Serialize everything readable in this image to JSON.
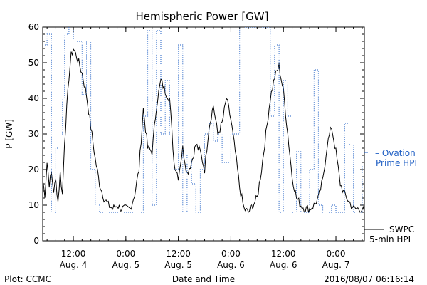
{
  "chart_data": {
    "type": "line",
    "title": "Hemispheric Power [GW]",
    "xlabel": "Date and Time",
    "ylabel": "P [GW]",
    "ylim": [
      0,
      60
    ],
    "y_ticks": [
      0,
      10,
      20,
      30,
      40,
      50,
      60
    ],
    "x_range_hours": [
      "2016-08-04 05:00",
      "2016-08-07 06:30"
    ],
    "x_ticks": [
      {
        "t": "2016-08-04 12:00",
        "line1": "12:00",
        "line2": "Aug. 4"
      },
      {
        "t": "2016-08-05 00:00",
        "line1": "0:00",
        "line2": "Aug. 5"
      },
      {
        "t": "2016-08-05 12:00",
        "line1": "12:00",
        "line2": "Aug. 5"
      },
      {
        "t": "2016-08-06 00:00",
        "line1": "0:00",
        "line2": "Aug. 6"
      },
      {
        "t": "2016-08-06 12:00",
        "line1": "12:00",
        "line2": "Aug. 6"
      },
      {
        "t": "2016-08-07 00:00",
        "line1": "0:00",
        "line2": "Aug. 7"
      }
    ],
    "series": [
      {
        "name": "SWPC 5-min HPI",
        "color": "#000000",
        "style": "solid",
        "x": [
          "2016-08-04 05:00",
          "2016-08-04 05:30",
          "2016-08-04 06:00",
          "2016-08-04 06:30",
          "2016-08-04 07:00",
          "2016-08-04 07:30",
          "2016-08-04 08:00",
          "2016-08-04 08:30",
          "2016-08-04 09:00",
          "2016-08-04 09:30",
          "2016-08-04 10:00",
          "2016-08-04 10:30",
          "2016-08-04 11:00",
          "2016-08-04 11:30",
          "2016-08-04 12:00",
          "2016-08-04 13:00",
          "2016-08-04 14:00",
          "2016-08-04 15:00",
          "2016-08-04 16:00",
          "2016-08-04 17:00",
          "2016-08-04 18:00",
          "2016-08-04 19:00",
          "2016-08-04 20:00",
          "2016-08-04 21:00",
          "2016-08-04 22:00",
          "2016-08-04 23:00",
          "2016-08-05 00:00",
          "2016-08-05 01:00",
          "2016-08-05 02:00",
          "2016-08-05 03:00",
          "2016-08-05 04:00",
          "2016-08-05 05:00",
          "2016-08-05 06:00",
          "2016-08-05 07:00",
          "2016-08-05 08:00",
          "2016-08-05 09:00",
          "2016-08-05 10:00",
          "2016-08-05 11:00",
          "2016-08-05 12:00",
          "2016-08-05 13:00",
          "2016-08-05 14:00",
          "2016-08-05 15:00",
          "2016-08-05 16:00",
          "2016-08-05 17:00",
          "2016-08-05 18:00",
          "2016-08-05 19:00",
          "2016-08-05 20:00",
          "2016-08-05 21:00",
          "2016-08-05 22:00",
          "2016-08-05 23:00",
          "2016-08-06 00:00",
          "2016-08-06 01:00",
          "2016-08-06 02:00",
          "2016-08-06 03:00",
          "2016-08-06 04:00",
          "2016-08-06 05:00",
          "2016-08-06 06:00",
          "2016-08-06 07:00",
          "2016-08-06 08:00",
          "2016-08-06 09:00",
          "2016-08-06 10:00",
          "2016-08-06 11:00",
          "2016-08-06 12:00",
          "2016-08-06 13:00",
          "2016-08-06 14:00",
          "2016-08-06 15:00",
          "2016-08-06 16:00",
          "2016-08-06 17:00",
          "2016-08-06 18:00",
          "2016-08-06 19:00",
          "2016-08-06 20:00",
          "2016-08-06 21:00",
          "2016-08-06 22:00",
          "2016-08-06 23:00",
          "2016-08-07 00:00",
          "2016-08-07 01:00",
          "2016-08-07 02:00",
          "2016-08-07 03:00",
          "2016-08-07 04:00",
          "2016-08-07 05:00",
          "2016-08-07 06:00",
          "2016-08-07 06:30"
        ],
        "y": [
          17,
          13,
          22,
          16,
          19,
          14,
          17,
          11,
          19,
          13,
          28,
          37,
          46,
          52,
          54,
          51,
          47,
          41,
          32,
          23,
          16,
          12,
          10,
          9,
          10,
          9,
          9,
          9,
          13,
          20,
          37,
          26,
          25,
          38,
          45,
          42,
          40,
          22,
          18,
          26,
          19,
          22,
          27,
          25,
          20,
          32,
          38,
          30,
          33,
          40,
          34,
          25,
          15,
          9,
          8,
          10,
          12,
          20,
          30,
          40,
          46,
          49,
          42,
          30,
          18,
          12,
          10,
          9,
          9,
          10,
          12,
          17,
          27,
          32,
          25,
          16,
          13,
          11,
          9,
          9,
          9,
          8
        ],
        "dense_noise": true
      },
      {
        "name": "Ovation Prime HPI",
        "color": "#1f5fc4",
        "style": "dotted-steps",
        "x": [
          "2016-08-04 05:00",
          "2016-08-04 06:00",
          "2016-08-04 07:00",
          "2016-08-04 08:00",
          "2016-08-04 08:30",
          "2016-08-04 09:30",
          "2016-08-04 10:00",
          "2016-08-04 11:00",
          "2016-08-04 12:00",
          "2016-08-04 14:00",
          "2016-08-04 15:00",
          "2016-08-04 16:00",
          "2016-08-04 17:00",
          "2016-08-04 18:00",
          "2016-08-04 19:00",
          "2016-08-05 00:00",
          "2016-08-05 04:00",
          "2016-08-05 05:00",
          "2016-08-05 06:00",
          "2016-08-05 07:00",
          "2016-08-05 08:00",
          "2016-08-05 09:00",
          "2016-08-05 10:00",
          "2016-08-05 11:00",
          "2016-08-05 12:00",
          "2016-08-05 13:00",
          "2016-08-05 14:00",
          "2016-08-05 15:00",
          "2016-08-05 16:00",
          "2016-08-05 17:00",
          "2016-08-05 18:00",
          "2016-08-05 19:00",
          "2016-08-05 20:00",
          "2016-08-05 21:00",
          "2016-08-05 22:00",
          "2016-08-06 00:00",
          "2016-08-06 01:00",
          "2016-08-06 02:00",
          "2016-08-06 07:00",
          "2016-08-06 09:00",
          "2016-08-06 10:00",
          "2016-08-06 11:00",
          "2016-08-06 12:00",
          "2016-08-06 13:00",
          "2016-08-06 14:00",
          "2016-08-06 15:00",
          "2016-08-06 16:00",
          "2016-08-06 17:00",
          "2016-08-06 18:00",
          "2016-08-06 19:00",
          "2016-08-06 20:00",
          "2016-08-06 21:00",
          "2016-08-06 22:00",
          "2016-08-06 23:00",
          "2016-08-07 00:00",
          "2016-08-07 01:00",
          "2016-08-07 02:00",
          "2016-08-07 03:00",
          "2016-08-07 04:00",
          "2016-08-07 05:00",
          "2016-08-07 06:00",
          "2016-08-07 06:30"
        ],
        "y": [
          55,
          58,
          8,
          26,
          30,
          40,
          58,
          61,
          56,
          41,
          56,
          20,
          10,
          8,
          8,
          8,
          35,
          59,
          10,
          59,
          30,
          45,
          30,
          20,
          55,
          8,
          24,
          16,
          8,
          20,
          30,
          33,
          28,
          30,
          22,
          30,
          30,
          60,
          60,
          35,
          55,
          8,
          45,
          35,
          8,
          25,
          8,
          8,
          20,
          48,
          10,
          8,
          8,
          10,
          8,
          8,
          33,
          27,
          8,
          8,
          21,
          8
        ]
      }
    ],
    "legend": {
      "ovation_line1": "– Ovation",
      "ovation_line2": "Prime HPI",
      "swpc_line1": "SWPC",
      "swpc_line2": "5-min HPI"
    }
  },
  "footer": {
    "credit": "Plot: CCMC",
    "timestamp": "2016/08/07 06:16:14"
  }
}
